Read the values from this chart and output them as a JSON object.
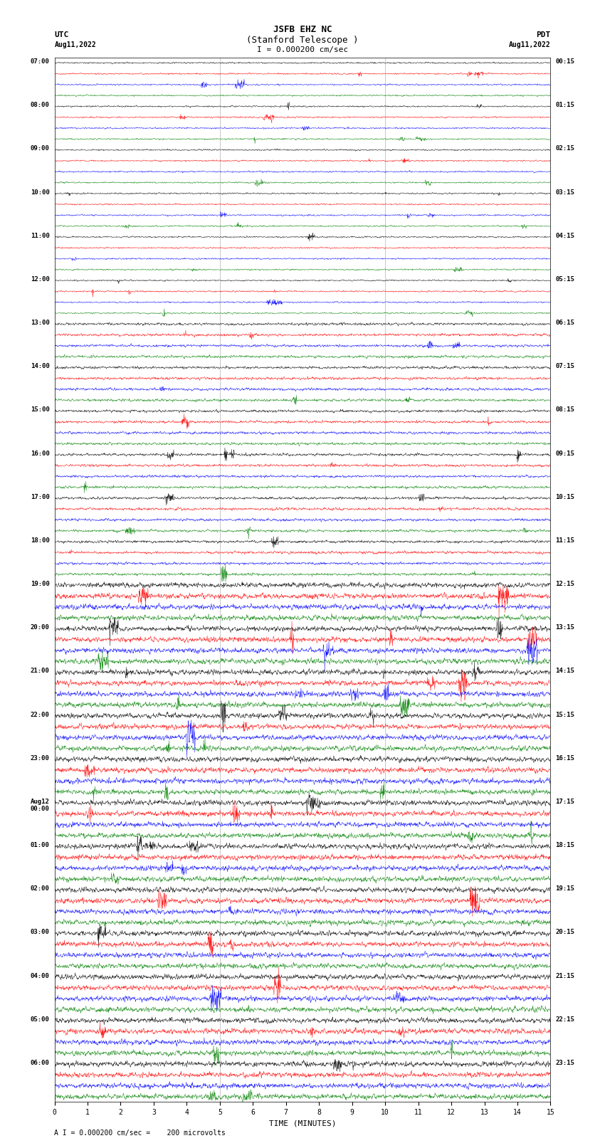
{
  "title_line1": "JSFB EHZ NC",
  "title_line2": "(Stanford Telescope )",
  "scale_label": "I = 0.000200 cm/sec",
  "footer_label": "A I = 0.000200 cm/sec =    200 microvolts",
  "xlabel": "TIME (MINUTES)",
  "colors": [
    "black",
    "red",
    "blue",
    "green"
  ],
  "bg_color": "white",
  "figsize": [
    8.5,
    16.13
  ],
  "dpi": 100,
  "n_groups": 24,
  "n_traces_per_group": 4,
  "left_time_labels": [
    "07:00",
    "08:00",
    "09:00",
    "10:00",
    "11:00",
    "12:00",
    "13:00",
    "14:00",
    "15:00",
    "16:00",
    "17:00",
    "18:00",
    "19:00",
    "20:00",
    "21:00",
    "22:00",
    "23:00",
    "Aug12\n00:00",
    "01:00",
    "02:00",
    "03:00",
    "04:00",
    "05:00",
    "06:00"
  ],
  "right_time_labels": [
    "00:15",
    "01:15",
    "02:15",
    "03:15",
    "04:15",
    "05:15",
    "06:15",
    "07:15",
    "08:15",
    "09:15",
    "10:15",
    "11:15",
    "12:15",
    "13:15",
    "14:15",
    "15:15",
    "16:15",
    "17:15",
    "18:15",
    "19:15",
    "20:15",
    "21:15",
    "22:15",
    "23:15"
  ]
}
